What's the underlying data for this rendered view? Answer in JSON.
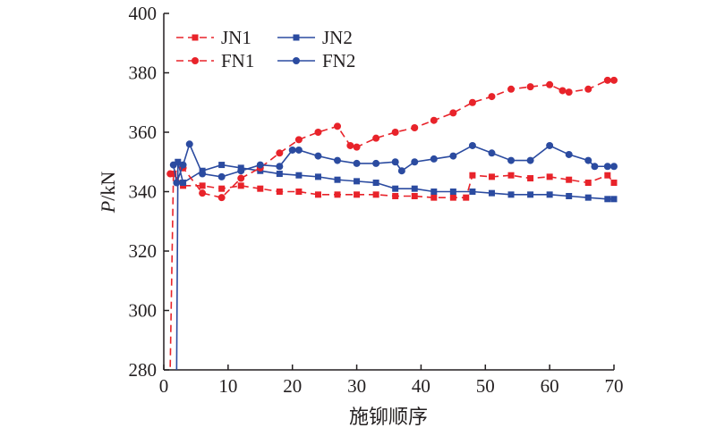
{
  "chart_data": {
    "type": "line",
    "title": "",
    "xlabel": "施铆顺序",
    "ylabel_italic": "P",
    "ylabel_unit": "/kN",
    "xlim": [
      0,
      70
    ],
    "ylim": [
      280,
      400
    ],
    "xticks": [
      0,
      10,
      20,
      30,
      40,
      50,
      60,
      70
    ],
    "yticks": [
      280,
      300,
      320,
      340,
      360,
      380,
      400
    ],
    "grid": false,
    "legend_position": "top-left",
    "series": [
      {
        "name": "JN1",
        "color": "#e8232a",
        "dash": true,
        "marker": "square",
        "x": [
          1,
          1.5,
          3,
          6,
          9,
          12,
          15,
          18,
          21,
          24,
          27,
          30,
          33,
          36,
          39,
          42,
          45,
          47,
          48,
          51,
          54,
          57,
          60,
          63,
          66,
          69,
          70
        ],
        "y": [
          281,
          346,
          342,
          342,
          341,
          342,
          341,
          340,
          340,
          339,
          339,
          339,
          339,
          338.5,
          338.5,
          338,
          338,
          338,
          345.5,
          345,
          345.5,
          344.5,
          345,
          344,
          343,
          345.5,
          343
        ]
      },
      {
        "name": "JN2",
        "color": "#2b4ba0",
        "dash": false,
        "marker": "square",
        "x": [
          2,
          2.2,
          3,
          6,
          9,
          12,
          15,
          18,
          21,
          24,
          27,
          30,
          33,
          36,
          39,
          42,
          45,
          48,
          51,
          54,
          57,
          60,
          63,
          66,
          69,
          70
        ],
        "y": [
          280,
          350,
          343,
          347,
          349,
          348,
          347,
          346,
          345.5,
          345,
          344,
          343.5,
          343,
          341,
          341,
          340,
          340,
          340,
          339.5,
          339,
          339,
          339,
          338.5,
          338,
          337.5,
          337.5
        ]
      },
      {
        "name": "FN1",
        "color": "#e8232a",
        "dash": true,
        "marker": "circle",
        "x": [
          1,
          3,
          6,
          9,
          12,
          15,
          18,
          21,
          24,
          27,
          29,
          30,
          33,
          36,
          39,
          42,
          45,
          48,
          51,
          54,
          57,
          60,
          62,
          63,
          66,
          69,
          70
        ],
        "y": [
          346,
          348,
          339.5,
          338,
          344.5,
          348,
          353,
          357.5,
          360,
          362,
          355.5,
          355,
          358,
          360,
          361.5,
          364,
          366.5,
          370,
          372,
          374.5,
          375.3,
          376,
          374,
          373.5,
          374.5,
          377.5,
          377.5
        ]
      },
      {
        "name": "FN2",
        "color": "#2b4ba0",
        "dash": false,
        "marker": "circle",
        "x": [
          1.5,
          2,
          3,
          4,
          6,
          9,
          12,
          15,
          18,
          20,
          21,
          24,
          27,
          30,
          33,
          36,
          37,
          39,
          42,
          45,
          48,
          51,
          54,
          57,
          60,
          63,
          66,
          67,
          69,
          70
        ],
        "y": [
          349,
          343,
          349,
          356,
          346,
          345,
          347,
          349,
          348.5,
          354,
          354,
          352,
          350.5,
          349.5,
          349.5,
          350,
          347,
          350,
          351,
          352,
          355.5,
          353,
          350.5,
          350.5,
          355.5,
          352.5,
          350.5,
          348.5,
          348.5,
          348.5
        ]
      }
    ]
  }
}
